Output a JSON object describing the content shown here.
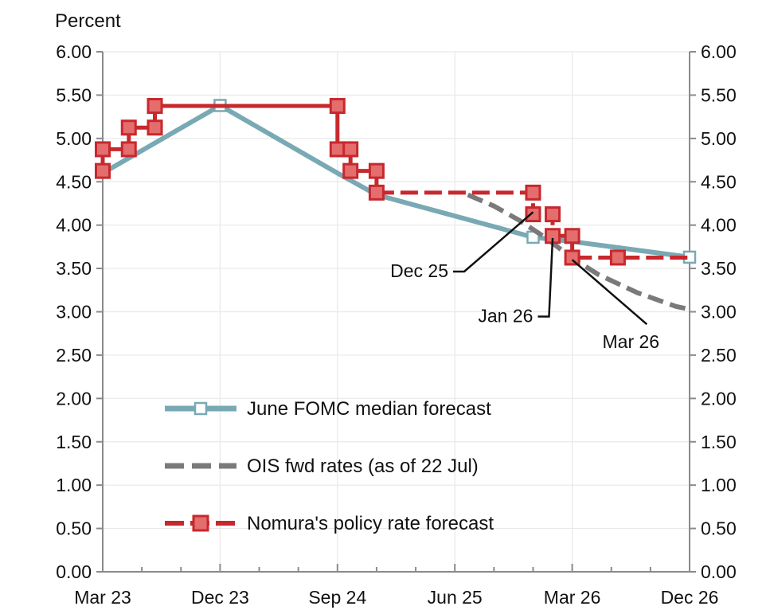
{
  "chart_data": {
    "type": "line",
    "ylabel": "Percent",
    "ylim": [
      0,
      6
    ],
    "yticks": [
      "0.00",
      "0.50",
      "1.00",
      "1.50",
      "2.00",
      "2.50",
      "3.00",
      "3.50",
      "4.00",
      "4.50",
      "5.00",
      "5.50",
      "6.00"
    ],
    "xlim": [
      0,
      45
    ],
    "xticks": [
      {
        "label": "Mar 23",
        "x": 0
      },
      {
        "label": "Dec 23",
        "x": 9
      },
      {
        "label": "Sep 24",
        "x": 18
      },
      {
        "label": "Jun 25",
        "x": 27
      },
      {
        "label": "Mar 26",
        "x": 36
      },
      {
        "label": "Dec 26",
        "x": 45
      }
    ],
    "grid": true,
    "colors": {
      "fomc": "#79a9b4",
      "ois": "#7a7a7a",
      "nomura": "#c8282d",
      "nomura_marker_fill": "#e46d6d",
      "axis": "#8a8a8a",
      "grid": "#e8e8e8"
    },
    "series": [
      {
        "name": "June FOMC median forecast",
        "style": "solid",
        "points": [
          [
            0,
            4.6
          ],
          [
            9,
            5.38
          ],
          [
            18,
            4.6
          ],
          [
            21,
            4.35
          ],
          [
            33,
            3.86
          ],
          [
            36,
            3.81
          ],
          [
            45,
            3.63
          ]
        ],
        "markers": [
          [
            9,
            5.38
          ],
          [
            33,
            3.86
          ],
          [
            45,
            3.63
          ]
        ]
      },
      {
        "name": "OIS fwd rates (as of 22 Jul)",
        "style": "dashed",
        "points": [
          [
            28,
            4.35
          ],
          [
            30,
            4.22
          ],
          [
            32,
            4.05
          ],
          [
            34,
            3.85
          ],
          [
            36,
            3.62
          ],
          [
            38,
            3.43
          ],
          [
            41,
            3.22
          ],
          [
            44,
            3.06
          ],
          [
            45,
            3.03
          ]
        ],
        "markers": []
      },
      {
        "name": "Nomura's policy rate forecast",
        "style": "step",
        "points": [
          [
            0,
            4.625
          ],
          [
            0,
            4.875
          ],
          [
            2,
            4.875
          ],
          [
            2,
            5.125
          ],
          [
            4,
            5.125
          ],
          [
            4,
            5.375
          ],
          [
            18,
            5.375
          ],
          [
            18,
            4.875
          ],
          [
            19,
            4.875
          ],
          [
            19,
            4.625
          ],
          [
            21,
            4.625
          ],
          [
            21,
            4.375
          ],
          [
            33,
            4.375
          ],
          [
            33,
            4.125
          ],
          [
            34.5,
            4.125
          ],
          [
            34.5,
            3.875
          ],
          [
            36,
            3.875
          ],
          [
            36,
            3.625
          ],
          [
            45,
            3.625
          ]
        ],
        "dashed_from_x": 21,
        "markers": [
          [
            0,
            4.625
          ],
          [
            0,
            4.875
          ],
          [
            2,
            4.875
          ],
          [
            2,
            5.125
          ],
          [
            4,
            5.125
          ],
          [
            4,
            5.375
          ],
          [
            18,
            5.375
          ],
          [
            18,
            4.875
          ],
          [
            19,
            4.875
          ],
          [
            19,
            4.625
          ],
          [
            21,
            4.625
          ],
          [
            21,
            4.375
          ],
          [
            33,
            4.375
          ],
          [
            33,
            4.125
          ],
          [
            34.5,
            4.125
          ],
          [
            34.5,
            3.875
          ],
          [
            36,
            3.875
          ],
          [
            36,
            3.625
          ],
          [
            39.5,
            3.625
          ]
        ]
      }
    ],
    "annotations": [
      {
        "label": "Dec 25",
        "point": [
          33,
          4.15
        ],
        "text_at": [
          26.5,
          3.4
        ],
        "anchor": "end"
      },
      {
        "label": "Jan 26",
        "point": [
          34.5,
          3.85
        ],
        "text_at": [
          33,
          2.88
        ],
        "anchor": "end"
      },
      {
        "label": "Mar 26",
        "point": [
          36,
          3.6
        ],
        "text_at": [
          40.5,
          2.58
        ],
        "anchor": "middle"
      }
    ],
    "legend": {
      "placement": "center-left",
      "entries": [
        "June FOMC median forecast",
        "OIS fwd rates (as of 22 Jul)",
        "Nomura's policy rate forecast"
      ]
    }
  }
}
